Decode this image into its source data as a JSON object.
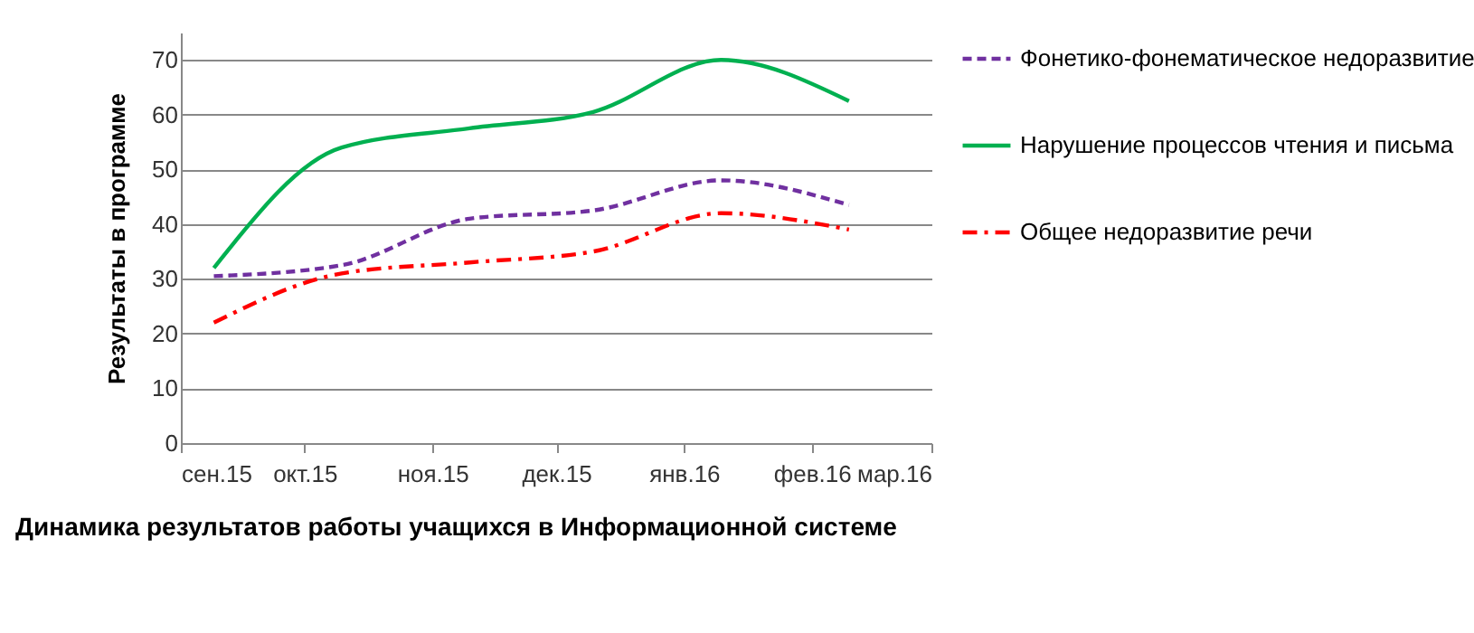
{
  "chart_data": {
    "type": "line",
    "title": "Динамика результатов работы учащихся в Информационной системе",
    "ylabel": "Результаты в программе",
    "x": [
      "2015-09-09",
      "2015-10-10",
      "2015-11-10",
      "2015-12-10",
      "2016-01-10",
      "2016-02-10"
    ],
    "series": [
      {
        "name": "Фонетико-фонематическое недоразвитие",
        "color": "#7030a0",
        "line_style": "dashed",
        "values": [
          30.5,
          32.5,
          41,
          42.5,
          48,
          43.5
        ]
      },
      {
        "name": "Нарушение процессов чтения и письма",
        "color": "#00b050",
        "line_style": "solid",
        "values": [
          32,
          54,
          57.5,
          60.5,
          70,
          62.5
        ]
      },
      {
        "name": "Общее недоразвитие речи",
        "color": "#ff0000",
        "line_style": "dashdot",
        "values": [
          22,
          31,
          33,
          35,
          42,
          39
        ]
      }
    ],
    "xlim": [
      "2015-09-01",
      "2016-03-01"
    ],
    "xticks": [
      {
        "value": "2015-09-01",
        "label": "сен.15"
      },
      {
        "value": "2015-10-01",
        "label": "окт.15"
      },
      {
        "value": "2015-11-01",
        "label": "ноя.15"
      },
      {
        "value": "2015-12-01",
        "label": "дек.15"
      },
      {
        "value": "2016-01-01",
        "label": "янв.16"
      },
      {
        "value": "2016-02-01",
        "label": "фев.16"
      },
      {
        "value": "2016-03-01",
        "label": "мар.16"
      }
    ],
    "ylim": [
      0,
      75
    ],
    "yticks": [
      0,
      10,
      20,
      30,
      40,
      50,
      60,
      70
    ],
    "grid": "y",
    "legend": "right",
    "marker": "none"
  }
}
